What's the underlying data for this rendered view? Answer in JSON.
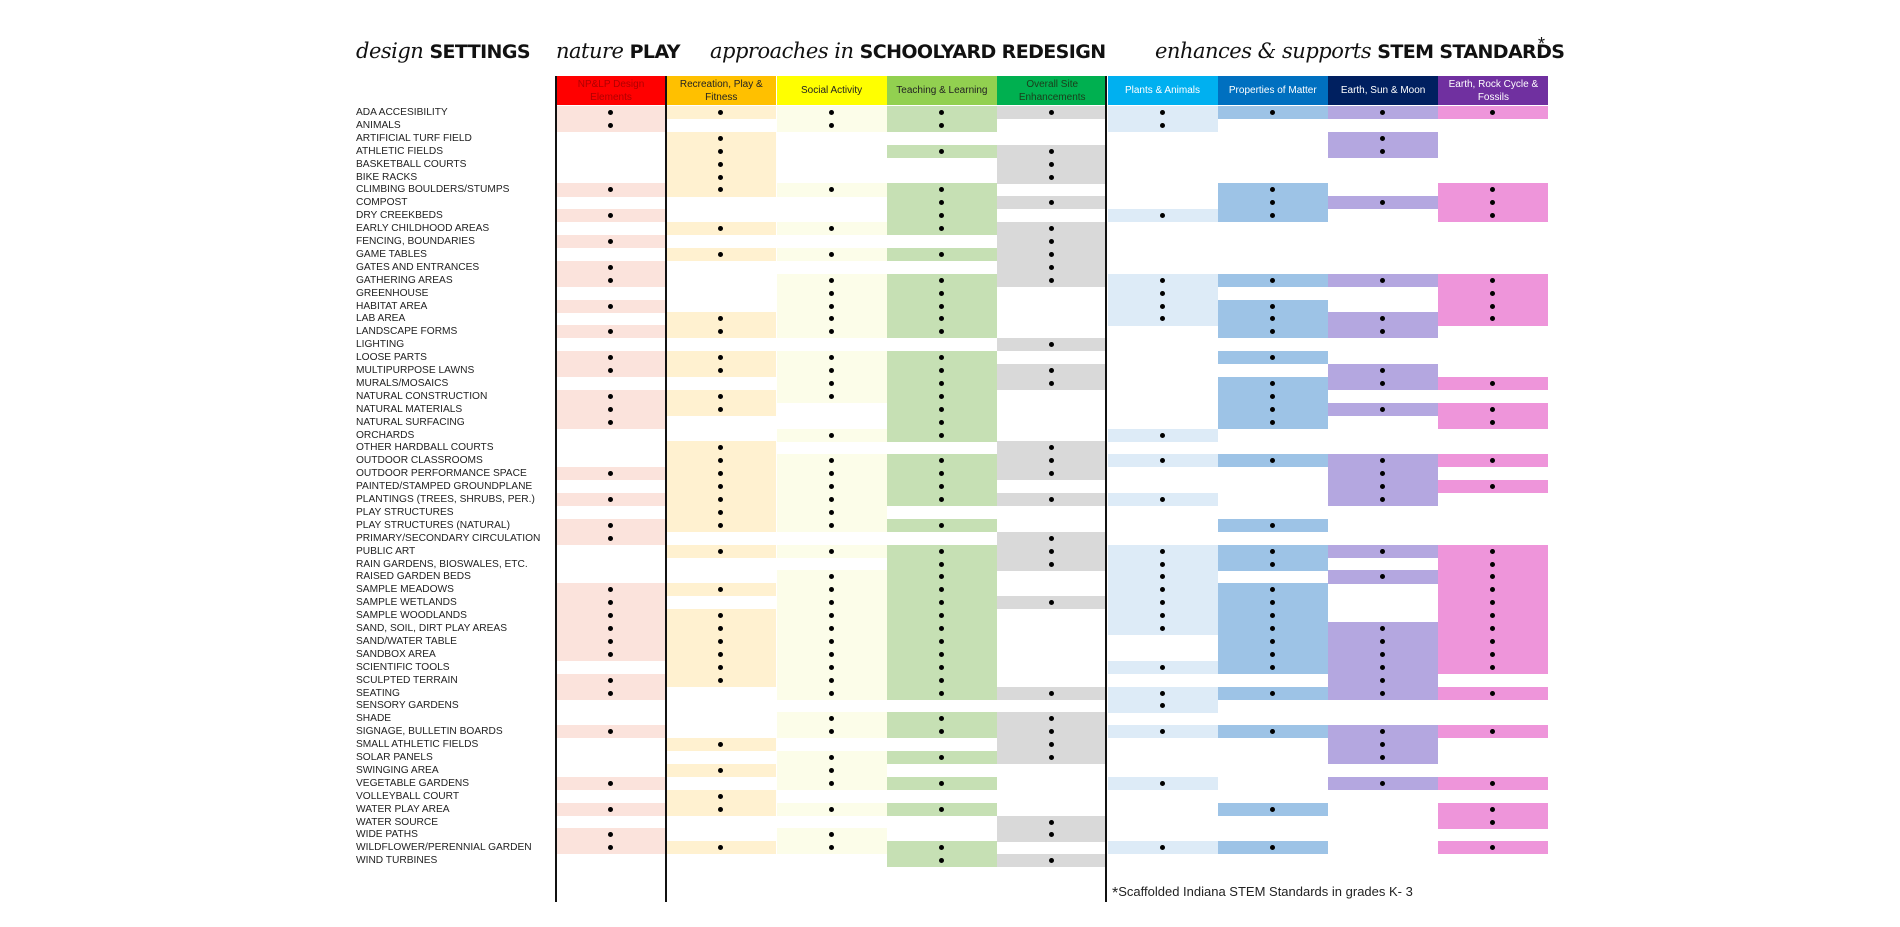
{
  "titles": {
    "design": {
      "script": "design",
      "bold": "SETTINGS"
    },
    "nature": {
      "script": "nature",
      "bold": "PLAY"
    },
    "approaches": {
      "script": "approaches in",
      "bold": "SCHOOLYARD REDESIGN"
    },
    "stem": {
      "script": "enhances & supports",
      "bold": "STEM STANDARDS",
      "asterisk": "*"
    }
  },
  "columns": [
    {
      "key": "np",
      "label": "NP&LP Design Elements",
      "header_color": "#ff0000",
      "text_color": "#b00000",
      "cell_color": "#fbe3dc"
    },
    {
      "key": "rec",
      "label": "Recreation, Play & Fitness",
      "header_color": "#ffc000",
      "text_color": "#222222",
      "cell_color": "#fff1d0"
    },
    {
      "key": "soc",
      "label": "Social Activity",
      "header_color": "#ffff00",
      "text_color": "#222222",
      "cell_color": "#fcfde9"
    },
    {
      "key": "teach",
      "label": "Teaching & Learning",
      "header_color": "#92d050",
      "text_color": "#222222",
      "cell_color": "#c6e0b4"
    },
    {
      "key": "site",
      "label": "Overall Site Enhancements",
      "header_color": "#00b050",
      "text_color": "#1a3d1a",
      "cell_color": "#d9d9d9"
    },
    {
      "key": "plants",
      "label": "Plants & Animals",
      "header_color": "#00b0f0",
      "text_color": "#ffffff",
      "cell_color": "#ddebf7"
    },
    {
      "key": "matter",
      "label": "Properties of Matter",
      "header_color": "#0070c0",
      "text_color": "#ffffff",
      "cell_color": "#9dc3e6"
    },
    {
      "key": "sun",
      "label": "Earth, Sun & Moon",
      "header_color": "#002060",
      "text_color": "#ffffff",
      "cell_color": "#b4a7e0"
    },
    {
      "key": "rock",
      "label": "Earth, Rock Cycle & Fossils",
      "header_color": "#7030a0",
      "text_color": "#ffffff",
      "cell_color": "#ee95da"
    }
  ],
  "rows": [
    "ADA ACCESIBILITY",
    "ANIMALS",
    "ARTIFICIAL TURF FIELD",
    "ATHLETIC FIELDS",
    "BASKETBALL COURTS",
    "BIKE RACKS",
    "CLIMBING BOULDERS/STUMPS",
    "COMPOST",
    "DRY CREEKBEDS",
    "EARLY CHILDHOOD AREAS",
    "FENCING, BOUNDARIES",
    "GAME TABLES",
    "GATES AND ENTRANCES",
    "GATHERING AREAS",
    "GREENHOUSE",
    "HABITAT AREA",
    "LAB AREA",
    "LANDSCAPE FORMS",
    "LIGHTING",
    "LOOSE PARTS",
    "MULTIPURPOSE LAWNS",
    "MURALS/MOSAICS",
    "NATURAL CONSTRUCTION",
    "NATURAL MATERIALS",
    "NATURAL SURFACING",
    "ORCHARDS",
    "OTHER HARDBALL COURTS",
    "OUTDOOR CLASSROOMS",
    "OUTDOOR PERFORMANCE SPACE",
    "PAINTED/STAMPED GROUNDPLANE",
    "PLANTINGS (TREES, SHRUBS, PER.)",
    "PLAY STRUCTURES",
    "PLAY STRUCTURES (NATURAL)",
    "PRIMARY/SECONDARY CIRCULATION",
    "PUBLIC ART",
    "RAIN GARDENS, BIOSWALES, ETC.",
    "RAISED GARDEN BEDS",
    "SAMPLE MEADOWS",
    "SAMPLE WETLANDS",
    "SAMPLE WOODLANDS",
    "SAND, SOIL, DIRT PLAY AREAS",
    "SAND/WATER TABLE",
    "SANDBOX AREA",
    "SCIENTIFIC TOOLS",
    "SCULPTED TERRAIN",
    "SEATING",
    "SENSORY GARDENS",
    "SHADE",
    "SIGNAGE, BULLETIN BOARDS",
    "SMALL ATHLETIC FIELDS",
    "SOLAR PANELS",
    "SWINGING AREA",
    "VEGETABLE GARDENS",
    "VOLLEYBALL COURT",
    "WATER PLAY AREA",
    "WATER SOURCE",
    "WIDE PATHS",
    "WILDFLOWER/PERENNIAL GARDEN",
    "WIND TURBINES"
  ],
  "marks": {
    "np": [
      1,
      2,
      7,
      9,
      11,
      13,
      14,
      16,
      18,
      20,
      21,
      23,
      24,
      25,
      29,
      31,
      33,
      34,
      38,
      39,
      40,
      41,
      42,
      43,
      45,
      46,
      49,
      53,
      55,
      57,
      58
    ],
    "rec": [
      1,
      3,
      4,
      5,
      6,
      7,
      10,
      12,
      17,
      18,
      20,
      21,
      23,
      24,
      27,
      28,
      29,
      30,
      31,
      32,
      33,
      35,
      38,
      40,
      41,
      42,
      43,
      44,
      45,
      50,
      52,
      54,
      55,
      58
    ],
    "soc": [
      1,
      2,
      7,
      10,
      12,
      14,
      15,
      16,
      17,
      18,
      20,
      21,
      22,
      23,
      26,
      28,
      29,
      30,
      31,
      32,
      33,
      35,
      37,
      38,
      39,
      40,
      41,
      42,
      43,
      44,
      45,
      46,
      48,
      49,
      51,
      52,
      53,
      55,
      57,
      58
    ],
    "teach": [
      1,
      2,
      4,
      7,
      8,
      9,
      10,
      12,
      14,
      15,
      16,
      17,
      18,
      20,
      21,
      22,
      23,
      24,
      25,
      26,
      28,
      29,
      30,
      31,
      33,
      35,
      36,
      37,
      38,
      39,
      40,
      41,
      42,
      43,
      44,
      45,
      46,
      48,
      49,
      51,
      53,
      55,
      58,
      59
    ],
    "site": [
      1,
      4,
      5,
      6,
      8,
      10,
      11,
      12,
      13,
      14,
      19,
      21,
      22,
      27,
      28,
      29,
      31,
      34,
      35,
      36,
      39,
      46,
      48,
      49,
      50,
      51,
      56,
      57,
      59
    ],
    "plants": [
      1,
      2,
      9,
      14,
      15,
      16,
      17,
      26,
      28,
      31,
      35,
      36,
      37,
      38,
      39,
      40,
      41,
      44,
      46,
      47,
      49,
      53,
      58
    ],
    "matter": [
      1,
      7,
      8,
      9,
      14,
      16,
      17,
      18,
      20,
      22,
      23,
      24,
      25,
      28,
      33,
      35,
      36,
      38,
      39,
      40,
      41,
      42,
      43,
      44,
      46,
      49,
      55,
      58
    ],
    "sun": [
      1,
      3,
      4,
      8,
      14,
      17,
      18,
      21,
      22,
      24,
      28,
      29,
      30,
      31,
      35,
      37,
      41,
      42,
      43,
      44,
      45,
      46,
      49,
      50,
      51,
      53
    ],
    "rock": [
      1,
      7,
      8,
      9,
      14,
      15,
      16,
      17,
      22,
      24,
      25,
      28,
      30,
      35,
      36,
      37,
      38,
      39,
      40,
      41,
      42,
      43,
      44,
      46,
      49,
      53,
      55,
      56,
      58
    ]
  },
  "footnote": {
    "star": "*",
    "text": "Scaffolded Indiana STEM Standards in grades K- 3"
  }
}
